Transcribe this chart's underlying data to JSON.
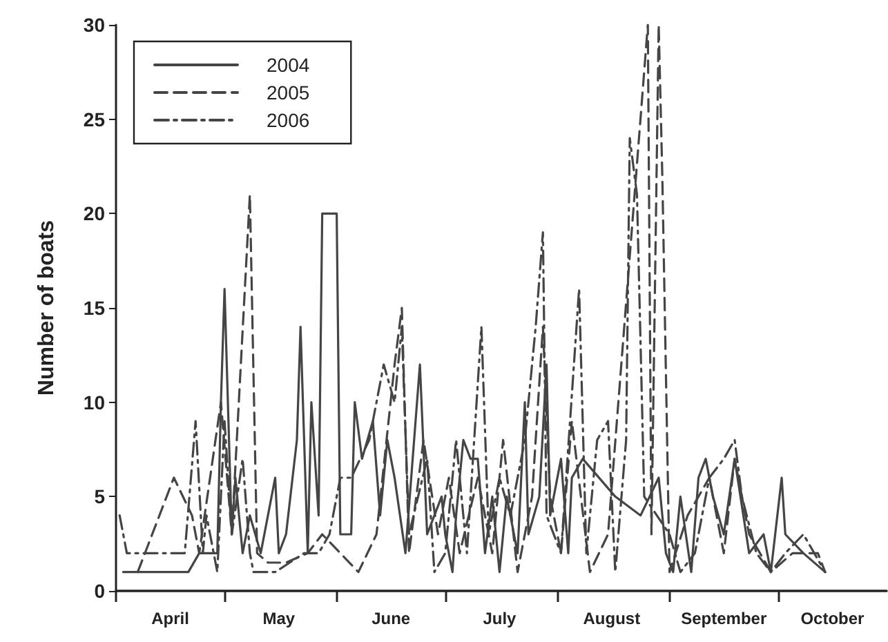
{
  "chart_data": {
    "type": "line",
    "ylabel": "Number of boats",
    "xlim": [
      "--04-01",
      "--10-31"
    ],
    "xticks": [
      {
        "value": "--04-01",
        "label": null
      },
      {
        "value": "--04-16",
        "label": "April"
      },
      {
        "value": "--05-01",
        "label": null
      },
      {
        "value": "--05-16",
        "label": "May"
      },
      {
        "value": "--06-01",
        "label": null
      },
      {
        "value": "--06-16",
        "label": "June"
      },
      {
        "value": "--07-01",
        "label": null
      },
      {
        "value": "--07-16",
        "label": "July"
      },
      {
        "value": "--08-01",
        "label": null
      },
      {
        "value": "--08-16",
        "label": "August"
      },
      {
        "value": "--09-01",
        "label": null
      },
      {
        "value": "--09-16",
        "label": "September"
      },
      {
        "value": "--10-01",
        "label": null
      },
      {
        "value": "--10-16",
        "label": "October"
      }
    ],
    "ylim": [
      0,
      30
    ],
    "yticks": [
      0,
      5,
      10,
      15,
      20,
      25,
      30
    ],
    "grid": false,
    "legend": "top left",
    "marker": "none",
    "series": [
      {
        "name": "2004",
        "color": "#454545",
        "line_style": "solid",
        "x": [
          "--04-03",
          "--04-21",
          "--04-24",
          "--04-29",
          "--04-30",
          "--05-01",
          "--05-03",
          "--05-04",
          "--05-06",
          "--05-08",
          "--05-11",
          "--05-13",
          "--05-15",
          "--05-16",
          "--05-18",
          "--05-21",
          "--05-22",
          "--05-24",
          "--05-25",
          "--05-27",
          "--05-28",
          "--06-01",
          "--06-02",
          "--06-05",
          "--06-06",
          "--06-08",
          "--06-11",
          "--06-13",
          "--06-15",
          "--06-17",
          "--06-20",
          "--06-22",
          "--06-24",
          "--06-26",
          "--06-28",
          "--06-30",
          "--07-01",
          "--07-03",
          "--07-04",
          "--07-06",
          "--07-08",
          "--07-10",
          "--07-12",
          "--07-14",
          "--07-16",
          "--07-18",
          "--07-21",
          "--07-23",
          "--07-24",
          "--07-27",
          "--07-29",
          "--07-30",
          "--08-02",
          "--08-04",
          "--08-05",
          "--08-08",
          "--08-17",
          "--08-24",
          "--08-29",
          "--08-31",
          "--09-02",
          "--09-04",
          "--09-07",
          "--09-09",
          "--09-11",
          "--09-13",
          "--09-16",
          "--09-19",
          "--09-23",
          "--09-27",
          "--09-29",
          "--10-02",
          "--10-03",
          "--10-08",
          "--10-14"
        ],
        "values": [
          1,
          1,
          2,
          2,
          10,
          16,
          3,
          6,
          2,
          4,
          2,
          4,
          6,
          2,
          3,
          8,
          14,
          2,
          10,
          4,
          20,
          20,
          3,
          3,
          10,
          7,
          9,
          4,
          8,
          6,
          2,
          7,
          12,
          3,
          4,
          5,
          3,
          1,
          4,
          8,
          7,
          7,
          2,
          5,
          1,
          5,
          2,
          10,
          3,
          5,
          12,
          4,
          7,
          2,
          6,
          7,
          5,
          4,
          6,
          2,
          1,
          5,
          1,
          6,
          7,
          5,
          3,
          7,
          2,
          3,
          1,
          6,
          3,
          2,
          1
        ]
      },
      {
        "name": "2005",
        "color": "#454545",
        "line_style": "dashed",
        "x": [
          "--04-07",
          "--04-17",
          "--04-22",
          "--04-24",
          "--04-30",
          "--05-03",
          "--05-08",
          "--05-10",
          "--05-13",
          "--05-18",
          "--05-24",
          "--05-28",
          "--06-02",
          "--06-07",
          "--06-12",
          "--06-17",
          "--06-19",
          "--06-21",
          "--06-25",
          "--06-29",
          "--07-02",
          "--07-05",
          "--07-10",
          "--07-14",
          "--07-17",
          "--07-21",
          "--07-25",
          "--07-28",
          "--07-30",
          "--08-02",
          "--08-05",
          "--08-10",
          "--08-15",
          "--08-26",
          "--08-27",
          "--08-29",
          "--08-30",
          "--09-01",
          "--09-06",
          "--09-12",
          "--09-16",
          "--09-19",
          "--09-23",
          "--09-29",
          "--10-05",
          "--10-12",
          "--10-14"
        ],
        "values": [
          1,
          6,
          4,
          2,
          10,
          3,
          21,
          2,
          1.5,
          1.5,
          2,
          3,
          2,
          1,
          3,
          12,
          15,
          2,
          8,
          3,
          6,
          2,
          6,
          2,
          8,
          1,
          5,
          14,
          5,
          2,
          9,
          1,
          3,
          30,
          3,
          30,
          22,
          1,
          4,
          6,
          2,
          7,
          3,
          1,
          2,
          2,
          1
        ]
      },
      {
        "name": "2006",
        "color": "#454545",
        "line_style": "dashdot",
        "x": [
          "--04-02",
          "--04-04",
          "--04-20",
          "--04-23",
          "--04-25",
          "--04-26",
          "--04-29",
          "--05-01",
          "--05-03",
          "--05-06",
          "--05-08",
          "--05-09",
          "--05-15",
          "--05-19",
          "--05-23",
          "--05-27",
          "--05-30",
          "--06-02",
          "--06-05",
          "--06-10",
          "--06-14",
          "--06-17",
          "--06-19",
          "--06-21",
          "--06-26",
          "--06-28",
          "--07-01",
          "--07-04",
          "--07-07",
          "--07-11",
          "--07-13",
          "--07-16",
          "--07-19",
          "--07-23",
          "--07-26",
          "--07-28",
          "--07-29",
          "--08-02",
          "--08-07",
          "--08-09",
          "--08-12",
          "--08-15",
          "--08-17",
          "--08-20",
          "--08-21",
          "--08-23",
          "--08-25",
          "--09-01",
          "--09-04",
          "--09-08",
          "--09-12",
          "--09-16",
          "--09-19",
          "--09-21",
          "--09-25",
          "--09-29",
          "--10-03",
          "--10-08",
          "--10-14"
        ],
        "values": [
          4,
          2,
          2,
          9,
          2,
          4,
          1,
          9,
          3,
          7,
          2,
          1,
          1,
          1.5,
          2,
          2,
          3,
          6,
          6,
          8,
          12,
          10,
          14,
          3,
          7,
          1,
          2,
          8,
          2,
          14,
          3,
          6,
          4,
          8,
          14,
          19,
          4,
          2,
          16,
          2,
          8,
          9,
          1,
          8,
          24,
          21,
          5,
          3,
          1,
          2,
          6,
          7,
          8,
          5,
          2,
          1,
          2,
          3,
          1
        ]
      }
    ]
  }
}
